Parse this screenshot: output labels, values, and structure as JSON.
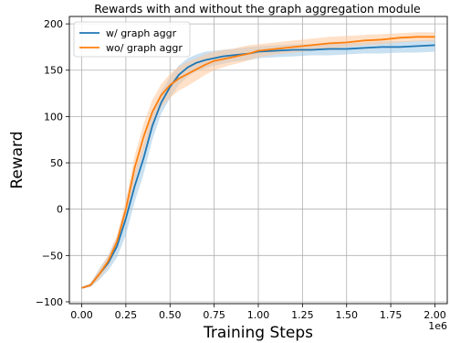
{
  "chart_data": {
    "type": "line",
    "title": "Rewards with and without the graph aggregation module",
    "xlabel": "Training Steps",
    "ylabel": "Reward",
    "x_offset_text": "1e6",
    "xlim": [
      -0.07,
      2.07
    ],
    "ylim": [
      -102,
      208
    ],
    "grid": true,
    "legend_position": "top-left",
    "x_ticks": [
      0.0,
      0.25,
      0.5,
      0.75,
      1.0,
      1.25,
      1.5,
      1.75,
      2.0
    ],
    "x_tick_labels": [
      "0.00",
      "0.25",
      "0.50",
      "0.75",
      "1.00",
      "1.25",
      "1.50",
      "1.75",
      "2.00"
    ],
    "y_ticks": [
      -100,
      -50,
      0,
      50,
      100,
      150,
      200
    ],
    "y_tick_labels": [
      "−100",
      "−50",
      "0",
      "50",
      "100",
      "150",
      "200"
    ],
    "x": [
      0.0,
      0.05,
      0.1,
      0.15,
      0.2,
      0.25,
      0.3,
      0.35,
      0.4,
      0.45,
      0.5,
      0.55,
      0.6,
      0.65,
      0.7,
      0.75,
      0.8,
      0.85,
      0.9,
      0.95,
      1.0,
      1.1,
      1.2,
      1.3,
      1.4,
      1.5,
      1.6,
      1.7,
      1.8,
      1.9,
      2.0
    ],
    "series": [
      {
        "name": "w/ graph aggr",
        "color": "#1f77b4",
        "band_color": "#9fc8e6",
        "values": [
          -85,
          -82,
          -70,
          -58,
          -40,
          -10,
          25,
          55,
          90,
          115,
          132,
          145,
          153,
          158,
          161,
          163,
          165,
          166,
          167,
          168,
          170,
          171,
          172,
          172,
          173,
          173,
          174,
          175,
          175,
          176,
          177
        ],
        "lower": [
          -86,
          -84,
          -76,
          -66,
          -52,
          -28,
          8,
          38,
          75,
          103,
          120,
          134,
          143,
          149,
          152,
          155,
          157,
          159,
          160,
          161,
          163,
          164,
          165,
          166,
          166,
          167,
          168,
          168,
          169,
          169,
          170
        ],
        "upper": [
          -84,
          -80,
          -64,
          -50,
          -30,
          5,
          40,
          70,
          104,
          127,
          143,
          155,
          163,
          167,
          170,
          171,
          172,
          173,
          174,
          175,
          176,
          177,
          178,
          178,
          179,
          179,
          180,
          181,
          181,
          182,
          183
        ]
      },
      {
        "name": "wo/ graph aggr",
        "color": "#ff7f0e",
        "band_color": "#ffc99c",
        "values": [
          -85,
          -82,
          -70,
          -56,
          -35,
          0,
          45,
          78,
          105,
          123,
          134,
          141,
          146,
          151,
          156,
          160,
          162,
          164,
          166,
          168,
          171,
          173,
          175,
          177,
          179,
          180,
          182,
          183,
          185,
          186,
          186
        ],
        "lower": [
          -86,
          -84,
          -75,
          -62,
          -42,
          -10,
          30,
          62,
          90,
          110,
          120,
          128,
          133,
          139,
          145,
          150,
          153,
          156,
          158,
          161,
          164,
          167,
          169,
          171,
          173,
          175,
          177,
          178,
          180,
          181,
          181
        ],
        "upper": [
          -84,
          -80,
          -65,
          -50,
          -28,
          10,
          58,
          92,
          118,
          135,
          146,
          154,
          159,
          163,
          167,
          170,
          172,
          173,
          175,
          177,
          178,
          180,
          182,
          184,
          186,
          187,
          188,
          189,
          190,
          191,
          191
        ]
      }
    ]
  }
}
